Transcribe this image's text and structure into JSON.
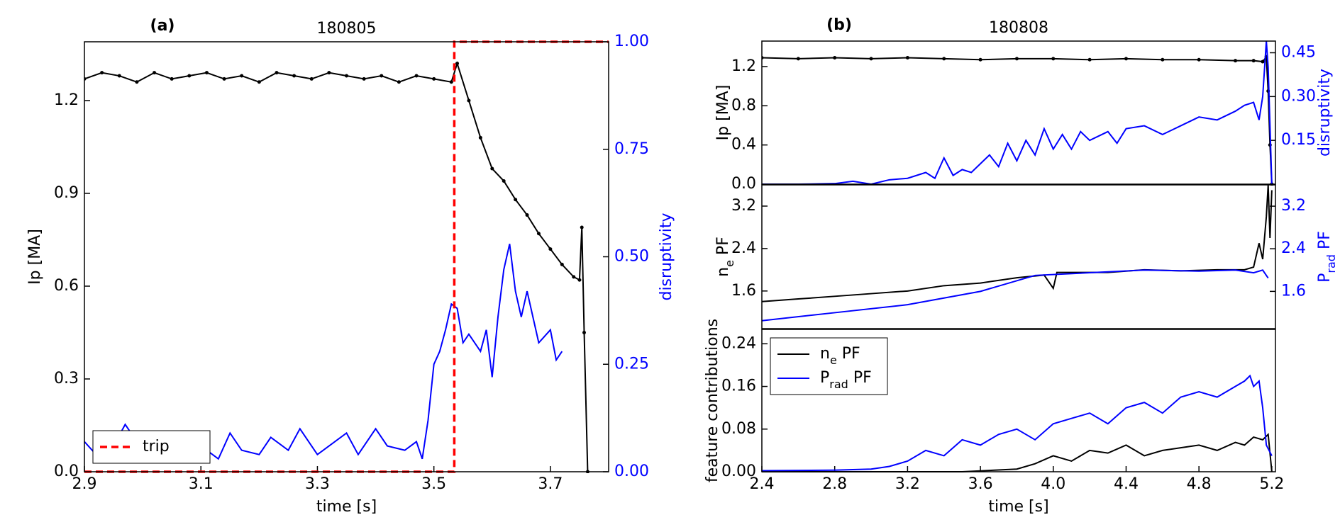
{
  "chart_data": [
    {
      "type": "line",
      "panel_label": "(a)",
      "title": "180805",
      "xlabel": "time [s]",
      "ylabel": "Ip [MA]",
      "y2label": "disruptivity",
      "y2color": "#0000ff",
      "xlim": [
        2.9,
        3.8
      ],
      "xticks": [
        2.9,
        3.1,
        3.3,
        3.5,
        3.7
      ],
      "ylim": [
        0,
        1.39
      ],
      "yticks": [
        {
          "value": 0,
          "label": "0.0"
        },
        0.3,
        0.6,
        0.9,
        1.2
      ],
      "y2lim": [
        0,
        1
      ],
      "y2ticks": [
        {
          "value": 0,
          "label": "0.00"
        },
        0.25,
        {
          "value": 0.5,
          "label": "0.50"
        },
        0.75,
        {
          "value": 1,
          "label": "1.00"
        }
      ],
      "legend": "lower left",
      "series": [
        {
          "color": "#000000",
          "marker": "o",
          "x": [
            2.9,
            2.93,
            2.96,
            2.99,
            3.02,
            3.05,
            3.08,
            3.11,
            3.14,
            3.17,
            3.2,
            3.23,
            3.26,
            3.29,
            3.32,
            3.35,
            3.38,
            3.41,
            3.44,
            3.47,
            3.5,
            3.53,
            3.54,
            3.56,
            3.58,
            3.6,
            3.62,
            3.64,
            3.66,
            3.68,
            3.7,
            3.72,
            3.74,
            3.75,
            3.754,
            3.758,
            3.764
          ],
          "values": [
            1.27,
            1.29,
            1.28,
            1.26,
            1.29,
            1.27,
            1.28,
            1.29,
            1.27,
            1.28,
            1.26,
            1.29,
            1.28,
            1.27,
            1.29,
            1.28,
            1.27,
            1.28,
            1.26,
            1.28,
            1.27,
            1.26,
            1.32,
            1.2,
            1.08,
            0.98,
            0.94,
            0.88,
            0.83,
            0.77,
            0.72,
            0.67,
            0.63,
            0.62,
            0.79,
            0.45,
            0.0
          ]
        },
        {
          "color": "#0000ff",
          "axis": "y2",
          "x": [
            2.9,
            2.92,
            2.95,
            2.97,
            3.0,
            3.02,
            3.05,
            3.08,
            3.1,
            3.13,
            3.15,
            3.17,
            3.2,
            3.22,
            3.25,
            3.27,
            3.3,
            3.32,
            3.35,
            3.37,
            3.4,
            3.42,
            3.45,
            3.47,
            3.48,
            3.49,
            3.5,
            3.51,
            3.52,
            3.53,
            3.54,
            3.55,
            3.56,
            3.58,
            3.59,
            3.6,
            3.61,
            3.62,
            3.63,
            3.64,
            3.65,
            3.66,
            3.67,
            3.68,
            3.7,
            3.71,
            3.72
          ],
          "values": [
            0.07,
            0.04,
            0.06,
            0.11,
            0.05,
            0.03,
            0.08,
            0.04,
            0.06,
            0.03,
            0.09,
            0.05,
            0.04,
            0.08,
            0.05,
            0.1,
            0.04,
            0.06,
            0.09,
            0.04,
            0.1,
            0.06,
            0.05,
            0.07,
            0.03,
            0.12,
            0.25,
            0.28,
            0.33,
            0.39,
            0.38,
            0.3,
            0.32,
            0.28,
            0.33,
            0.22,
            0.36,
            0.47,
            0.53,
            0.42,
            0.36,
            0.42,
            0.36,
            0.3,
            0.33,
            0.26,
            0.28
          ]
        },
        {
          "name": "trip",
          "color": "#ff0000",
          "axis": "y2",
          "linestyle": "dashed",
          "x": [
            2.9,
            3.535,
            3.535,
            3.8
          ],
          "values": [
            0,
            0,
            1,
            1
          ]
        }
      ]
    },
    {
      "type": "line",
      "panel_label": "(b)",
      "title": "180808",
      "ylabel": "Ip [MA]",
      "y2label": "disruptivity",
      "y2color": "#0000ff",
      "xlim": [
        2.4,
        5.22
      ],
      "ylim": [
        0,
        1.46
      ],
      "yticks": [
        {
          "value": 0,
          "label": "0.0"
        },
        0.4,
        0.8,
        1.2
      ],
      "y2lim": [
        0,
        0.49
      ],
      "y2ticks": [
        0.15,
        {
          "value": 0.3,
          "label": "0.30"
        },
        0.45
      ],
      "series": [
        {
          "color": "#000000",
          "marker": "o",
          "x": [
            2.4,
            2.6,
            2.8,
            3.0,
            3.2,
            3.4,
            3.6,
            3.8,
            4.0,
            4.2,
            4.4,
            4.6,
            4.8,
            5.0,
            5.1,
            5.15,
            5.17,
            5.18,
            5.19,
            5.2
          ],
          "values": [
            1.29,
            1.28,
            1.29,
            1.28,
            1.29,
            1.28,
            1.27,
            1.28,
            1.28,
            1.27,
            1.28,
            1.27,
            1.27,
            1.26,
            1.26,
            1.25,
            1.3,
            0.95,
            0.4,
            0.0
          ]
        },
        {
          "color": "#0000ff",
          "axis": "y2",
          "x": [
            2.4,
            2.6,
            2.8,
            2.9,
            3.0,
            3.1,
            3.2,
            3.3,
            3.35,
            3.4,
            3.45,
            3.5,
            3.55,
            3.6,
            3.65,
            3.7,
            3.75,
            3.8,
            3.85,
            3.9,
            3.95,
            4.0,
            4.05,
            4.1,
            4.15,
            4.2,
            4.3,
            4.35,
            4.4,
            4.5,
            4.6,
            4.7,
            4.8,
            4.9,
            5.0,
            5.05,
            5.1,
            5.13,
            5.15,
            5.17,
            5.18,
            5.2
          ],
          "values": [
            0.0,
            0.0,
            0.002,
            0.01,
            0.0,
            0.015,
            0.02,
            0.04,
            0.02,
            0.09,
            0.03,
            0.05,
            0.04,
            0.07,
            0.1,
            0.06,
            0.14,
            0.08,
            0.15,
            0.1,
            0.19,
            0.12,
            0.17,
            0.12,
            0.18,
            0.15,
            0.18,
            0.14,
            0.19,
            0.2,
            0.17,
            0.2,
            0.23,
            0.22,
            0.25,
            0.27,
            0.28,
            0.22,
            0.3,
            0.49,
            0.4,
            0.0
          ]
        }
      ]
    },
    {
      "type": "line",
      "ylabel": [
        "n",
        "e",
        " PF"
      ],
      "y2label": [
        "P",
        "rad",
        " PF"
      ],
      "y2color": "#0000ff",
      "xlim": [
        2.4,
        5.22
      ],
      "ylim": [
        0.89,
        3.6
      ],
      "yticks": [
        1.6,
        2.4,
        3.2
      ],
      "y2lim": [
        0.9,
        3.6
      ],
      "y2ticks": [
        1.6,
        2.4,
        3.2
      ],
      "series": [
        {
          "color": "#000000",
          "x": [
            2.4,
            2.6,
            2.8,
            3.0,
            3.2,
            3.4,
            3.6,
            3.8,
            3.95,
            4.0,
            4.02,
            4.1,
            4.3,
            4.5,
            4.7,
            4.9,
            5.05,
            5.1,
            5.13,
            5.15,
            5.17,
            5.18,
            5.19,
            5.2
          ],
          "values": [
            1.4,
            1.45,
            1.5,
            1.55,
            1.6,
            1.7,
            1.75,
            1.85,
            1.9,
            1.65,
            1.95,
            1.95,
            1.95,
            2.0,
            1.98,
            2.0,
            2.0,
            2.05,
            2.5,
            2.2,
            3.0,
            3.6,
            2.6,
            3.5
          ]
        },
        {
          "color": "#0000ff",
          "axis": "y2",
          "x": [
            2.4,
            2.8,
            3.2,
            3.6,
            3.9,
            4.2,
            4.5,
            4.8,
            5.0,
            5.1,
            5.15,
            5.17,
            5.18
          ],
          "values": [
            1.05,
            1.2,
            1.35,
            1.6,
            1.9,
            1.95,
            2.0,
            1.98,
            2.0,
            1.95,
            2.0,
            1.9,
            1.85
          ]
        }
      ]
    },
    {
      "type": "line",
      "xlabel": "time [s]",
      "ylabel": "feature contributions",
      "xlim": [
        2.4,
        5.22
      ],
      "xticks": [
        2.4,
        2.8,
        3.2,
        3.6,
        {
          "value": 4,
          "label": "4.0"
        },
        4.4,
        4.8,
        5.2
      ],
      "ylim": [
        0,
        0.267
      ],
      "yticks": [
        {
          "value": 0,
          "label": "0.00"
        },
        0.08,
        0.16,
        0.24
      ],
      "legend": "upper left",
      "series": [
        {
          "name": [
            "n",
            "e",
            " PF"
          ],
          "color": "#000000",
          "x": [
            2.4,
            3.0,
            3.5,
            3.8,
            3.9,
            4.0,
            4.1,
            4.2,
            4.3,
            4.4,
            4.5,
            4.6,
            4.7,
            4.8,
            4.9,
            5.0,
            5.05,
            5.1,
            5.15,
            5.18,
            5.2
          ],
          "values": [
            0,
            0,
            0,
            0.005,
            0.015,
            0.03,
            0.02,
            0.04,
            0.035,
            0.05,
            0.03,
            0.04,
            0.045,
            0.05,
            0.04,
            0.055,
            0.05,
            0.065,
            0.06,
            0.07,
            0.0
          ]
        },
        {
          "name": [
            "P",
            "rad",
            " PF"
          ],
          "color": "#0000ff",
          "x": [
            2.4,
            2.8,
            3.0,
            3.1,
            3.2,
            3.3,
            3.4,
            3.5,
            3.6,
            3.7,
            3.8,
            3.9,
            4.0,
            4.1,
            4.2,
            4.3,
            4.4,
            4.5,
            4.6,
            4.7,
            4.8,
            4.9,
            5.0,
            5.05,
            5.08,
            5.1,
            5.13,
            5.15,
            5.17,
            5.2
          ],
          "values": [
            0.002,
            0.003,
            0.005,
            0.01,
            0.02,
            0.04,
            0.03,
            0.06,
            0.05,
            0.07,
            0.08,
            0.06,
            0.09,
            0.1,
            0.11,
            0.09,
            0.12,
            0.13,
            0.11,
            0.14,
            0.15,
            0.14,
            0.16,
            0.17,
            0.18,
            0.16,
            0.17,
            0.12,
            0.05,
            0.03
          ]
        }
      ]
    }
  ]
}
